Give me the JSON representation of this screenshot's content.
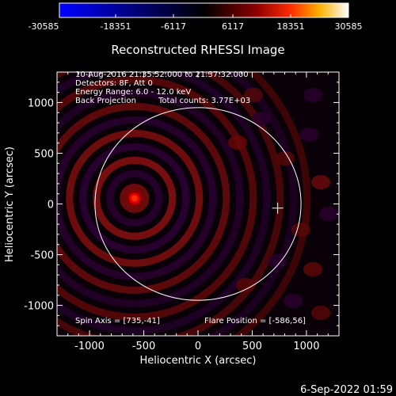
{
  "colorbar": {
    "tick_labels": [
      "-30585",
      "-18351",
      "-6117",
      "6117",
      "18351",
      "30585"
    ],
    "range": [
      -30585,
      30585
    ]
  },
  "title": "Reconstructed RHESSI Image",
  "info": {
    "line1": "10-Aug-2016 21:35:52.000 to 21:37:32.000",
    "line2": "Detectors: 8F, Att 0",
    "line3": "Energy Range: 6.0 - 12.0 keV",
    "line4a": "Back Projection",
    "line4b": "Total counts: 3.77E+03"
  },
  "footer_notes": {
    "spin_axis": "Spin Axis = [735,-41]",
    "flare_position": "Flare Position = [-586,56]"
  },
  "timestamp": "6-Sep-2022 01:59",
  "colors": {
    "background": "#000000",
    "axis": "#ffffff",
    "colormap": [
      "#0000ff",
      "#000000",
      "#800000",
      "#ff0000",
      "#ffff00",
      "#ffffff"
    ]
  },
  "chart_data": {
    "type": "heatmap",
    "title": "Reconstructed RHESSI Image",
    "xlabel": "Heliocentric X (arcsec)",
    "ylabel": "Heliocentric Y (arcsec)",
    "xlim": [
      -1300,
      1300
    ],
    "ylim": [
      -1300,
      1300
    ],
    "x_ticks": [
      -1000,
      -500,
      0,
      500,
      1000
    ],
    "y_ticks": [
      -1000,
      -500,
      0,
      500,
      1000
    ],
    "x_tick_labels": [
      "-1000",
      "-500",
      "0",
      "500",
      "1000"
    ],
    "y_tick_labels": [
      "-1000",
      "-500",
      "0",
      "500",
      "1000"
    ],
    "source_peak": {
      "x": -586,
      "y": 56
    },
    "solar_limb": {
      "center": [
        0,
        0
      ],
      "radius_arcsec": 950
    },
    "spin_axis_marker": {
      "x": 735,
      "y": -41
    },
    "colorbar_range": [
      -30585,
      30585
    ]
  }
}
